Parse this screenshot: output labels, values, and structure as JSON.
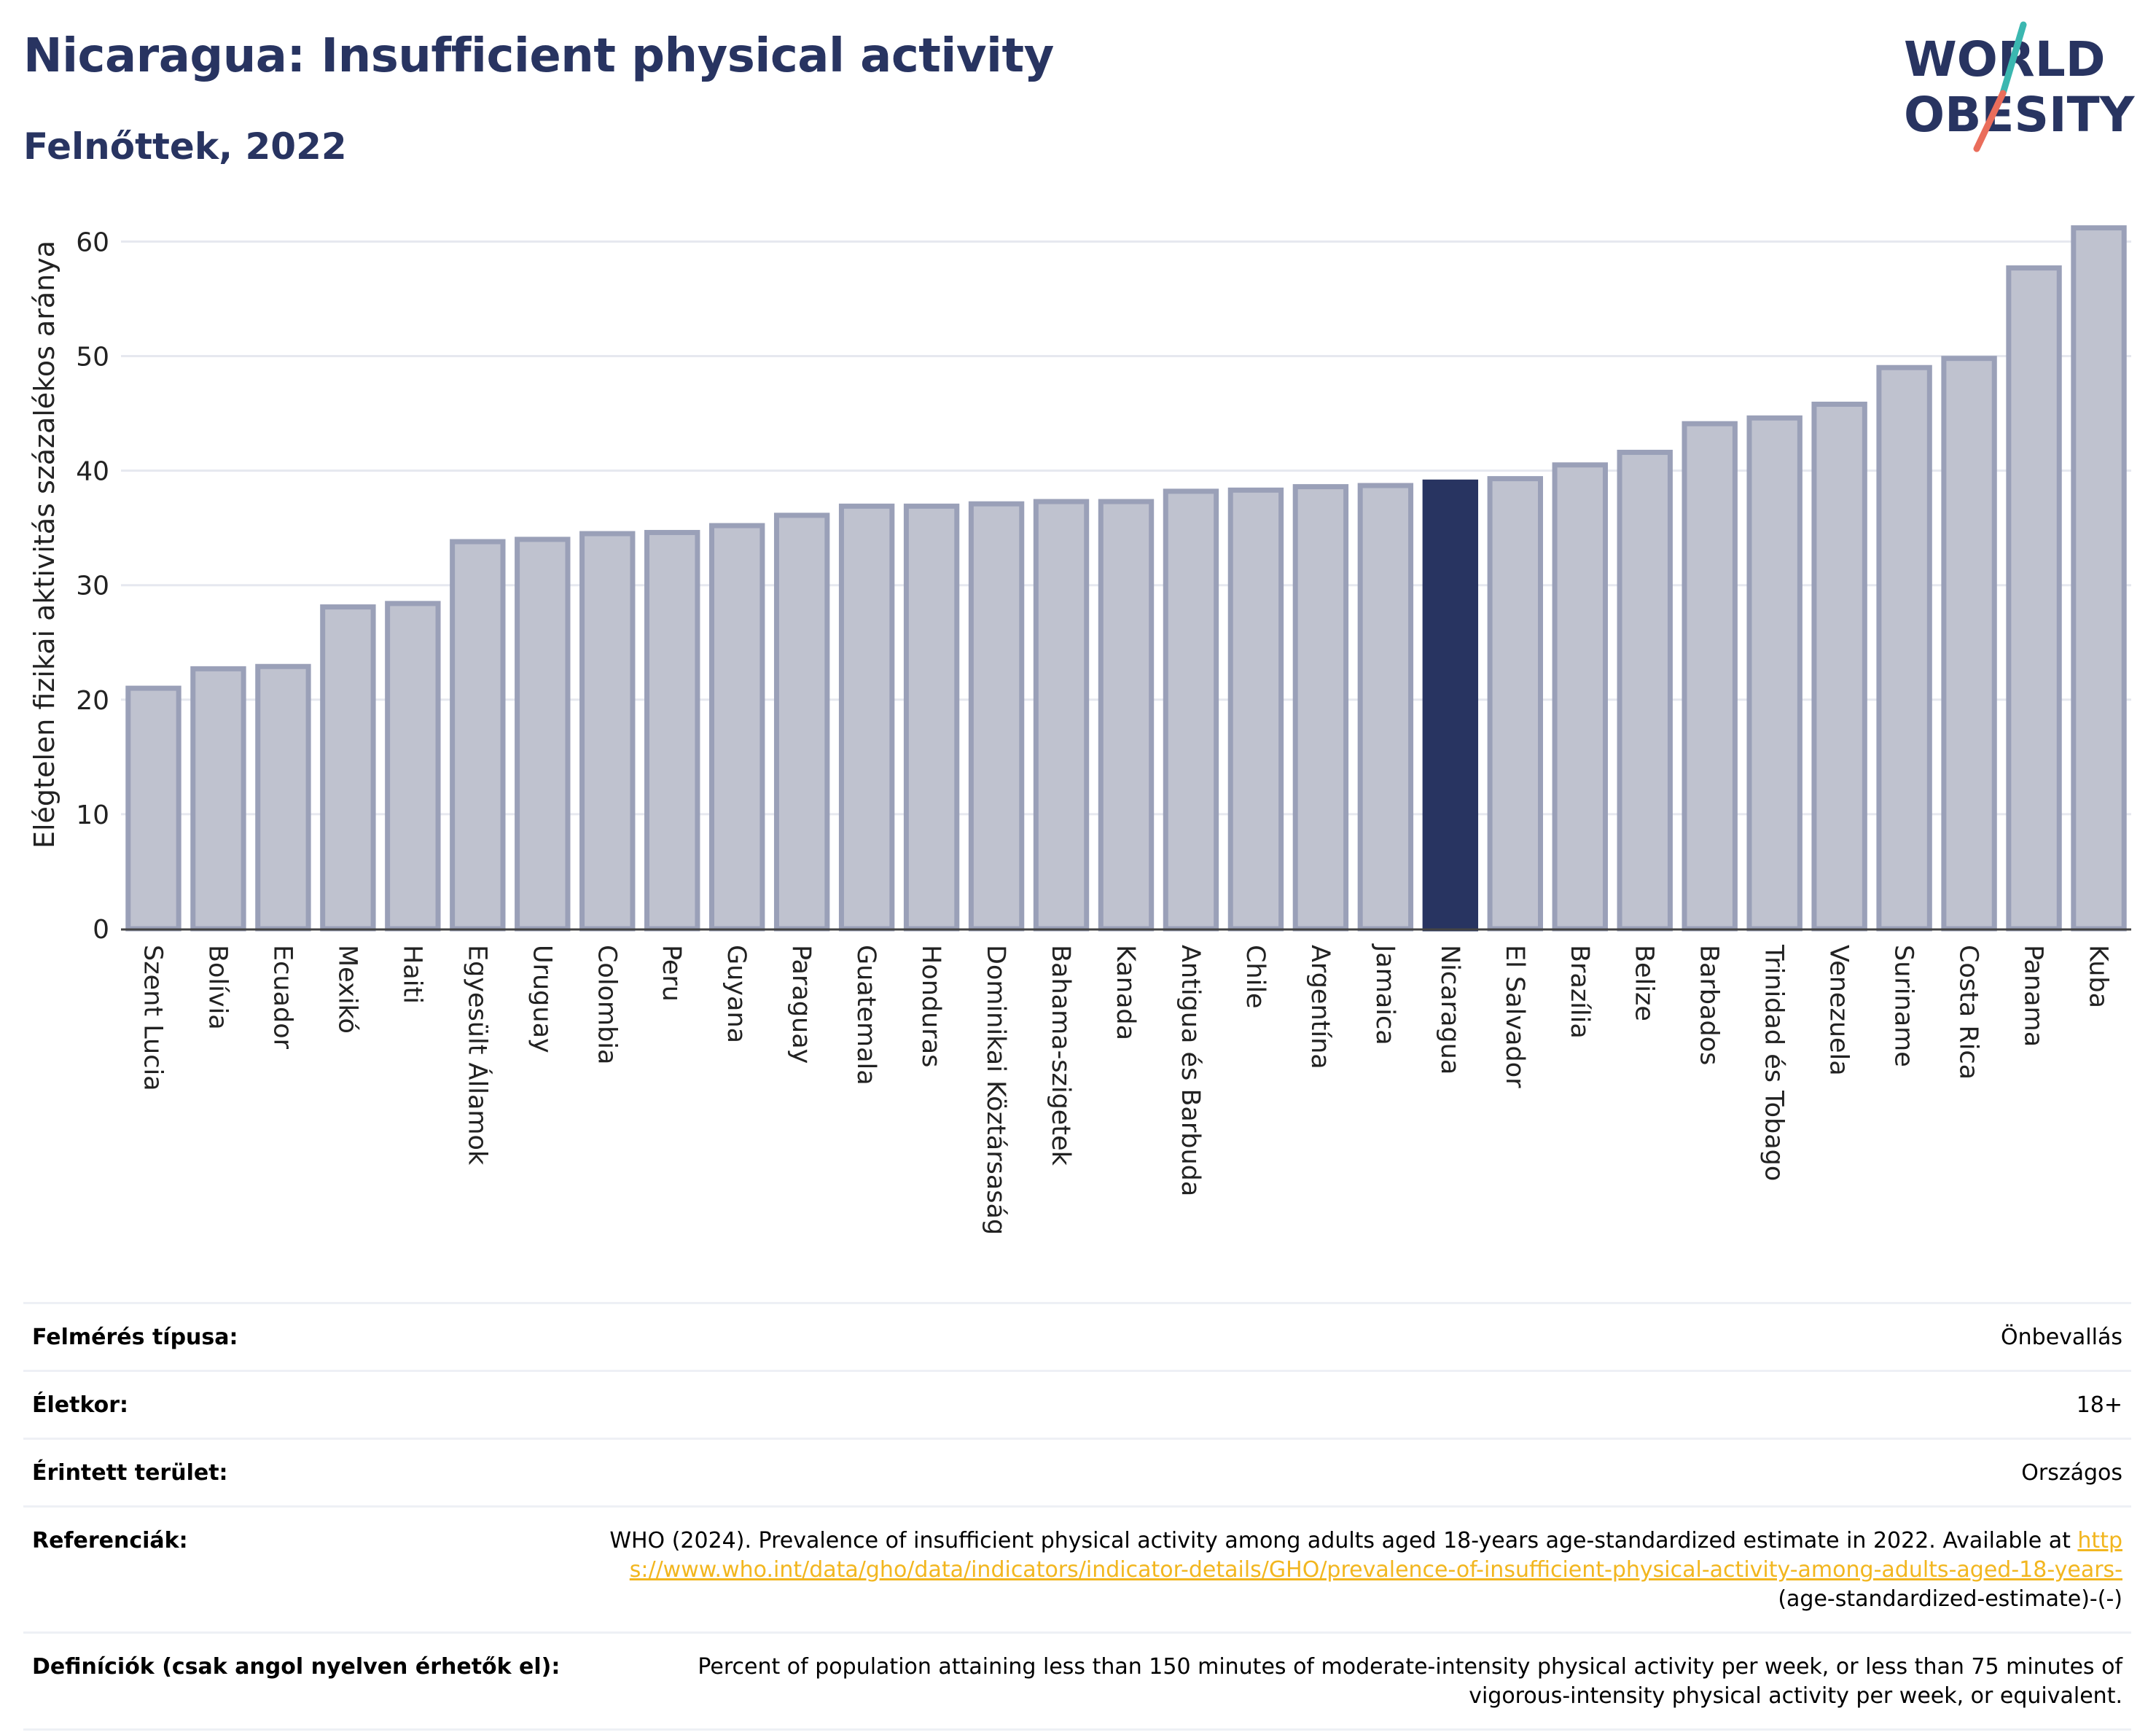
{
  "header": {
    "title": "Nicaragua: Insufficient physical activity",
    "subtitle": "Felnőttek, 2022"
  },
  "logo": {
    "line1": "WORLD",
    "line2": "OBESITY"
  },
  "chart_data": {
    "type": "bar",
    "ylabel": "Elégtelen fizikai aktivitás százalékos aránya",
    "ylim": [
      0,
      62
    ],
    "yticks": [
      0,
      10,
      20,
      30,
      40,
      50,
      60
    ],
    "grid": true,
    "highlight": "Nicaragua",
    "colors": {
      "bar": "#bfc2cf",
      "bar_edge": "#9aa0b8",
      "highlight": "#283461",
      "grid": "#e6e8ef"
    },
    "categories": [
      "Szent Lucia",
      "Bolívia",
      "Ecuador",
      "Mexikó",
      "Haiti",
      "Egyesült Államok",
      "Uruguay",
      "Colombia",
      "Peru",
      "Guyana",
      "Paraguay",
      "Guatemala",
      "Honduras",
      "Dominikai Köztársaság",
      "Bahama-szigetek",
      "Kanada",
      "Antigua és Barbuda",
      "Chile",
      "Argentína",
      "Jamaica",
      "Nicaragua",
      "El Salvador",
      "Brazília",
      "Belize",
      "Barbados",
      "Trinidad és Tobago",
      "Venezuela",
      "Suriname",
      "Costa Rica",
      "Panama",
      "Kuba"
    ],
    "values": [
      21.0,
      22.7,
      22.9,
      28.1,
      28.4,
      33.8,
      34.0,
      34.5,
      34.6,
      35.2,
      36.1,
      36.9,
      36.9,
      37.1,
      37.3,
      37.3,
      38.2,
      38.3,
      38.6,
      38.7,
      39.0,
      39.3,
      40.5,
      41.6,
      44.1,
      44.6,
      45.8,
      49.0,
      49.8,
      57.7,
      61.2
    ]
  },
  "meta": {
    "survey_label": "Felmérés típusa:",
    "survey_value": "Önbevallás",
    "age_label": "Életkor:",
    "age_value": "18+",
    "area_label": "Érintett terület:",
    "area_value": "Országos",
    "ref_label": "Referenciák:",
    "ref_text": "WHO (2024). Prevalence of insufficient physical activity among adults aged 18-years age-standardized estimate in 2022. Available at",
    "ref_link": "https://www.who.int/data/gho/data/indicators/indicator-details/GHO/prevalence-of-insufficient-physical-activity-among-adults-aged-18-years-",
    "ref_suffix": "(age-standardized-estimate)-(-)",
    "def_label": "Definíciók (csak angol nyelven érhetők el):",
    "def_text": "Percent of population attaining less than 150 minutes of moderate-intensity physical activity per week, or less than 75 minutes of vigorous-intensity physical activity per week, or equivalent."
  }
}
